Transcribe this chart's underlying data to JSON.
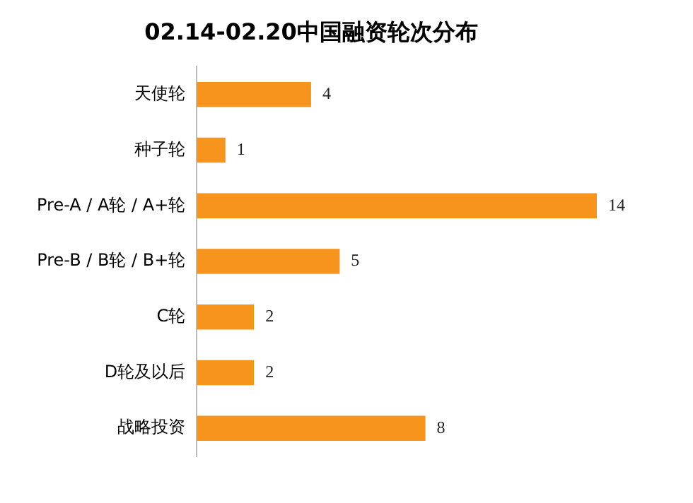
{
  "chart_data": {
    "type": "bar",
    "orientation": "horizontal",
    "title": "02.14-02.20中国融资轮次分布",
    "categories": [
      "天使轮",
      "种子轮",
      "Pre-A / A轮 / A+轮",
      "Pre-B / B轮 / B+轮",
      "C轮",
      "D轮及以后",
      "战略投资"
    ],
    "values": [
      4,
      1,
      14,
      5,
      2,
      2,
      8
    ],
    "color": "#f7941d",
    "data_labels": true
  }
}
